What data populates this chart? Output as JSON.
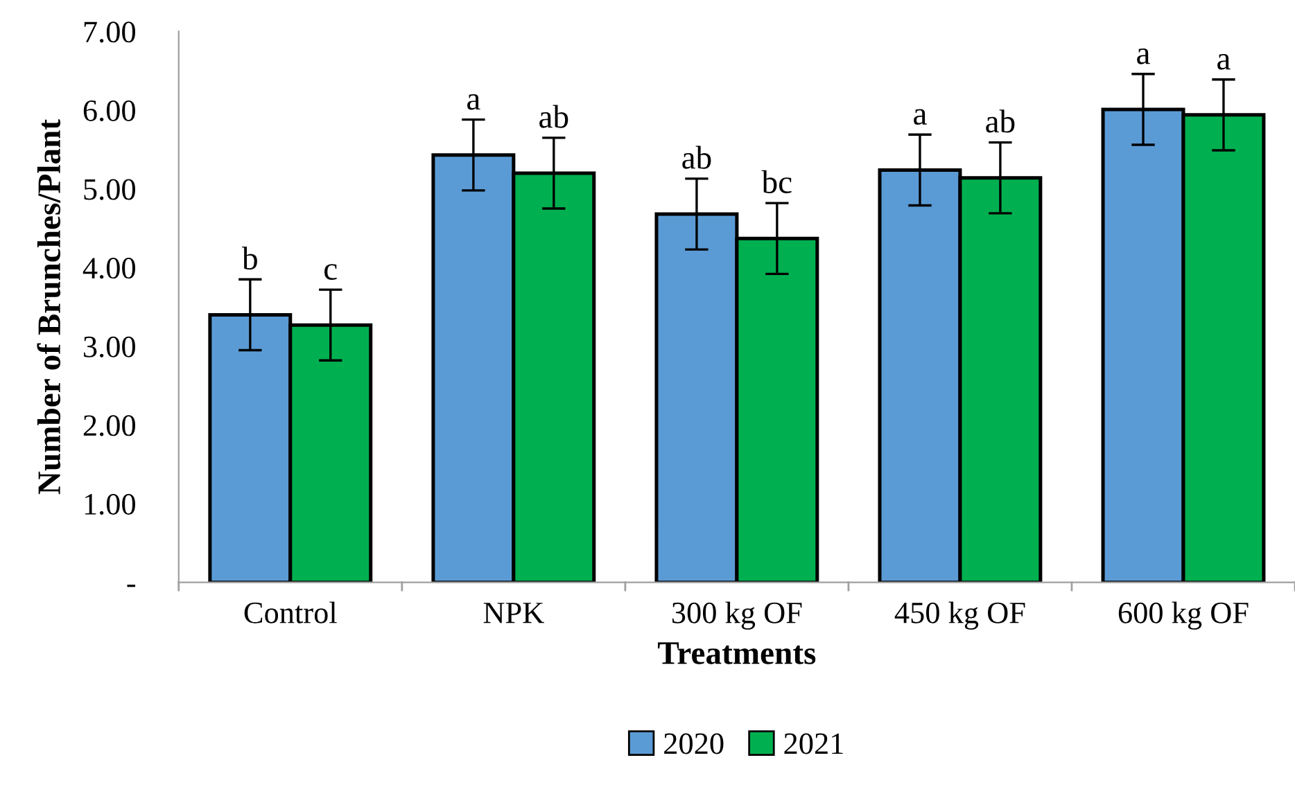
{
  "chart_data": {
    "type": "bar",
    "xlabel": "Treatments",
    "ylabel": "Number of Brunches/Plant",
    "categories": [
      "Control",
      "NPK",
      "300 kg OF",
      "450 kg OF",
      "600 kg OF"
    ],
    "series": [
      {
        "name": "2020",
        "color": "#5b9bd5",
        "values": [
          3.4,
          5.43,
          4.68,
          5.24,
          6.01
        ],
        "errors": [
          0.45,
          0.45,
          0.45,
          0.45,
          0.45
        ],
        "value_labels": [
          "b",
          "a",
          "ab",
          "a",
          "a"
        ]
      },
      {
        "name": "2021",
        "color": "#00b050",
        "values": [
          3.27,
          5.2,
          4.37,
          5.14,
          5.94
        ],
        "errors": [
          0.45,
          0.45,
          0.45,
          0.45,
          0.45
        ],
        "value_labels": [
          "c",
          "ab",
          "bc",
          "ab",
          "a"
        ]
      }
    ],
    "ylim": [
      0,
      7
    ],
    "yticks": [
      {
        "value": 0,
        "label": "-"
      },
      {
        "value": 1,
        "label": "1.00"
      },
      {
        "value": 2,
        "label": "2.00"
      },
      {
        "value": 3,
        "label": "3.00"
      },
      {
        "value": 4,
        "label": "4.00"
      },
      {
        "value": 5,
        "label": "5.00"
      },
      {
        "value": 6,
        "label": "6.00"
      },
      {
        "value": 7,
        "label": "7.00"
      }
    ],
    "grid": false,
    "legend": "bottom"
  }
}
